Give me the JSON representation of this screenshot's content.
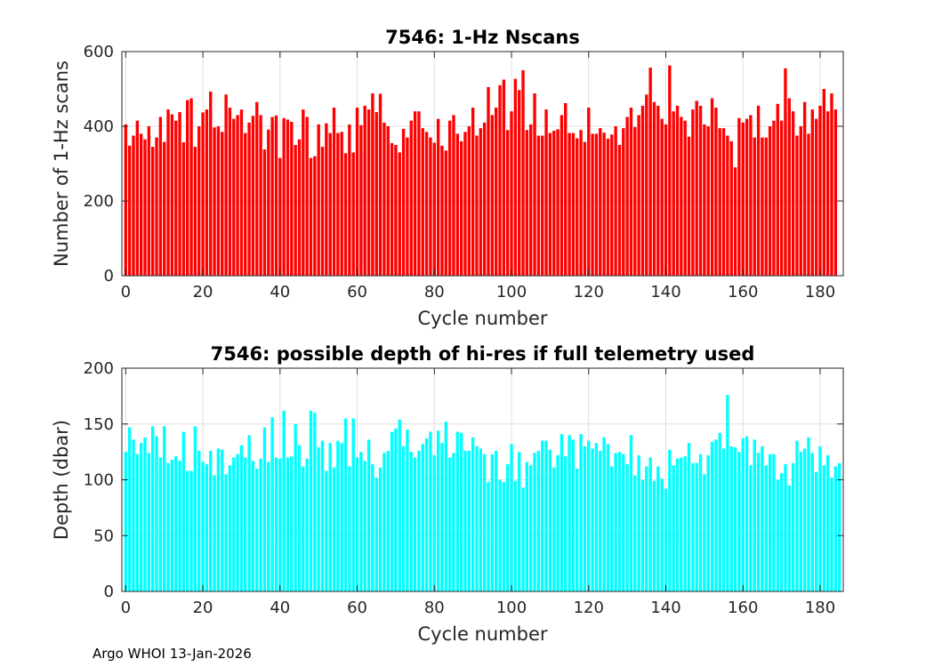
{
  "footer": "Argo WHOI 13-Jan-2026",
  "chart_data": [
    {
      "type": "bar",
      "title": "7546: 1-Hz Nscans",
      "xlabel": "Cycle number",
      "ylabel": "Number of 1-Hz scans",
      "xlim": [
        -1,
        186
      ],
      "ylim": [
        0,
        600
      ],
      "xticks": [
        0,
        20,
        40,
        60,
        80,
        100,
        120,
        140,
        160,
        180
      ],
      "yticks": [
        0,
        200,
        400,
        600
      ],
      "grid": true,
      "color": "#ff0000",
      "x_start": 0,
      "values": [
        405,
        348,
        375,
        415,
        380,
        365,
        400,
        345,
        370,
        425,
        358,
        445,
        432,
        415,
        438,
        357,
        470,
        475,
        345,
        400,
        437,
        445,
        493,
        397,
        400,
        385,
        485,
        450,
        420,
        430,
        445,
        382,
        410,
        428,
        465,
        430,
        338,
        391,
        425,
        429,
        315,
        422,
        418,
        412,
        350,
        365,
        445,
        425,
        315,
        320,
        405,
        345,
        408,
        382,
        450,
        382,
        385,
        328,
        405,
        330,
        450,
        403,
        455,
        445,
        488,
        438,
        487,
        410,
        400,
        355,
        350,
        330,
        393,
        370,
        415,
        440,
        440,
        395,
        385,
        370,
        356,
        420,
        348,
        335,
        415,
        430,
        380,
        360,
        385,
        400,
        450,
        375,
        395,
        410,
        505,
        430,
        450,
        510,
        525,
        390,
        440,
        527,
        497,
        550,
        390,
        405,
        488,
        375,
        375,
        445,
        382,
        388,
        392,
        430,
        462,
        382,
        382,
        368,
        390,
        358,
        450,
        380,
        380,
        395,
        383,
        367,
        378,
        400,
        350,
        395,
        425,
        450,
        398,
        430,
        455,
        485,
        557,
        465,
        455,
        420,
        405,
        563,
        440,
        455,
        425,
        415,
        372,
        445,
        468,
        455,
        405,
        400,
        475,
        450,
        395,
        395,
        375,
        360,
        290,
        422,
        410,
        420,
        430,
        370,
        455,
        370,
        370,
        400,
        415,
        460,
        415,
        555,
        475,
        440,
        375,
        400,
        465,
        380,
        445,
        420,
        455,
        500,
        440,
        488,
        445
      ]
    },
    {
      "type": "bar",
      "title": "7546: possible depth of hi-res if full telemetry used",
      "xlabel": "Cycle number",
      "ylabel": "Depth (dbar)",
      "xlim": [
        -1,
        186
      ],
      "ylim": [
        0,
        200
      ],
      "xticks": [
        0,
        20,
        40,
        60,
        80,
        100,
        120,
        140,
        160,
        180
      ],
      "yticks": [
        0,
        50,
        100,
        150,
        200
      ],
      "grid": true,
      "color": "#00ffff",
      "x_start": 0,
      "values": [
        125,
        147,
        136,
        123,
        133,
        138,
        124,
        148,
        139,
        120,
        148,
        115,
        118,
        121,
        117,
        143,
        108,
        108,
        148,
        126,
        116,
        114,
        126,
        104,
        128,
        127,
        105,
        113,
        120,
        123,
        131,
        120,
        140,
        117,
        110,
        119,
        147,
        116,
        156,
        120,
        119,
        162,
        120,
        121,
        150,
        131,
        112,
        119,
        162,
        160,
        129,
        135,
        108,
        133,
        111,
        135,
        133,
        155,
        112,
        155,
        120,
        125,
        117,
        136,
        114,
        102,
        111,
        124,
        126,
        143,
        146,
        154,
        130,
        145,
        125,
        120,
        126,
        132,
        137,
        143,
        122,
        144,
        133,
        152,
        120,
        124,
        143,
        142,
        126,
        126,
        138,
        130,
        128,
        123,
        98,
        123,
        126,
        100,
        98,
        114,
        132,
        99,
        125,
        93,
        116,
        113,
        124,
        126,
        135,
        135,
        127,
        111,
        122,
        141,
        121,
        140,
        136,
        110,
        141,
        130,
        135,
        128,
        133,
        126,
        138,
        132,
        112,
        124,
        125,
        123,
        114,
        140,
        104,
        122,
        100,
        112,
        120,
        99,
        112,
        101,
        92,
        127,
        113,
        119,
        120,
        121,
        133,
        115,
        115,
        123,
        105,
        122,
        134,
        136,
        142,
        128,
        176,
        130,
        129,
        125,
        137,
        139,
        113,
        136,
        124,
        130,
        113,
        123,
        123,
        100,
        106,
        114,
        95,
        115,
        135,
        125,
        128,
        138,
        124,
        107,
        130,
        113,
        122,
        102,
        112,
        115
      ]
    }
  ]
}
